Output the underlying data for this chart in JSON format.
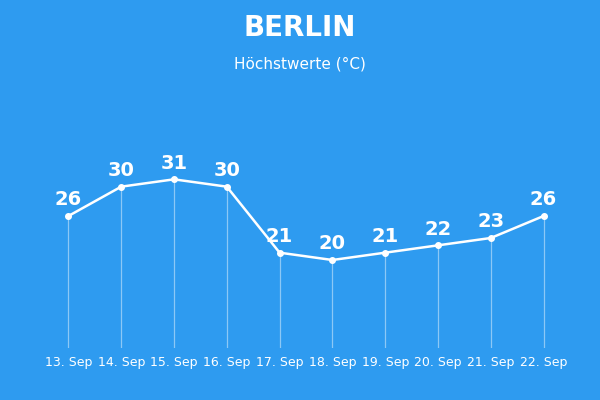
{
  "title": "BERLIN",
  "subtitle": "Höchstwerte (°C)",
  "dates": [
    "13. Sep",
    "14. Sep",
    "15. Sep",
    "16. Sep",
    "17. Sep",
    "18. Sep",
    "19. Sep",
    "20. Sep",
    "21. Sep",
    "22. Sep"
  ],
  "values": [
    26,
    30,
    31,
    30,
    21,
    20,
    21,
    22,
    23,
    26
  ],
  "background_color": "#2E9BF0",
  "line_color": "#ffffff",
  "text_color": "#ffffff",
  "title_fontsize": 20,
  "subtitle_fontsize": 11,
  "value_fontsize": 14,
  "xlabel_fontsize": 9,
  "ylim": [
    8,
    38
  ],
  "figsize": [
    6.0,
    4.0
  ],
  "dpi": 100
}
